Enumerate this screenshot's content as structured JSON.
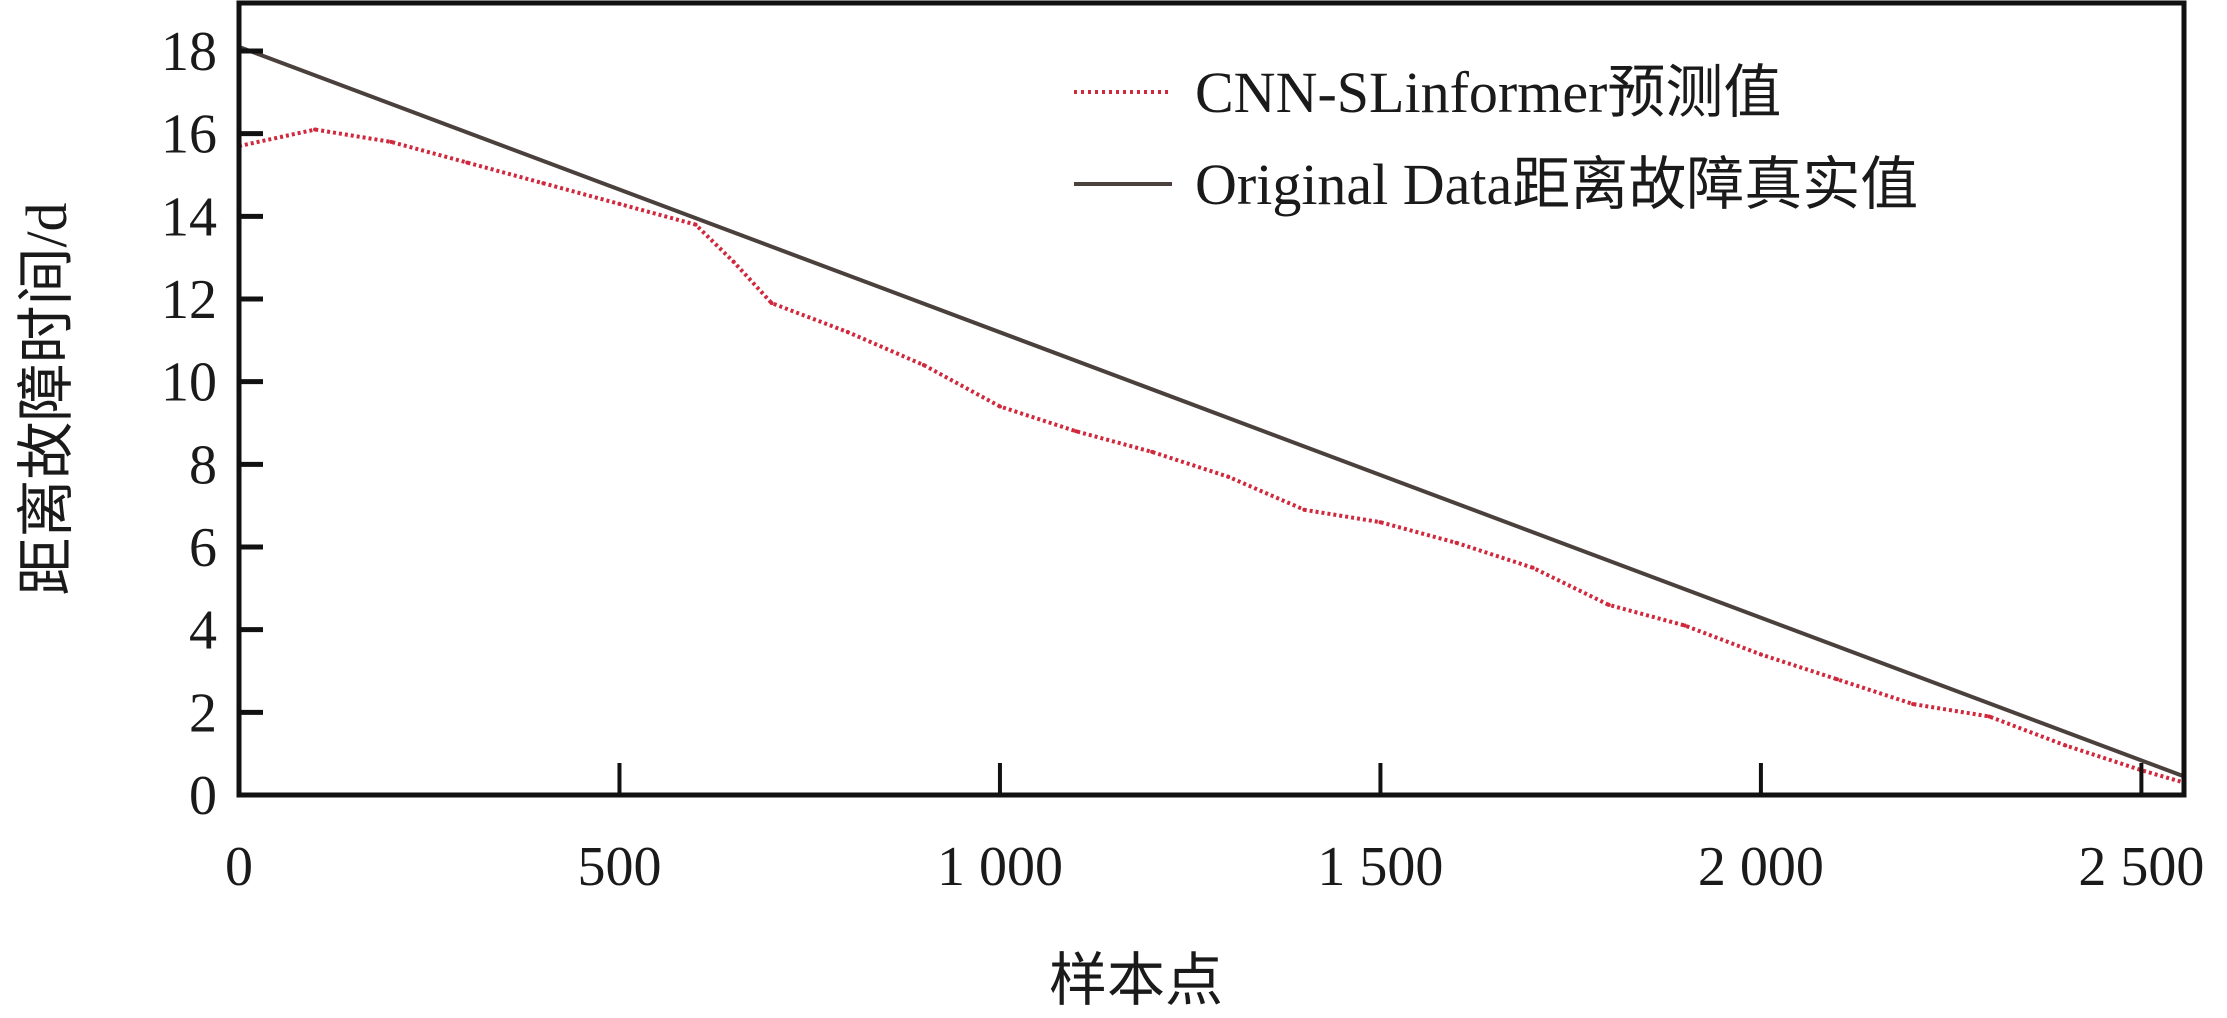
{
  "chart_data": {
    "type": "line",
    "title": "",
    "xlabel": "样本点",
    "ylabel": "距离故障时间/d",
    "xlim": [
      0,
      2556
    ],
    "ylim": [
      0,
      19
    ],
    "x_ticks": [
      0,
      500,
      1000,
      1500,
      2000,
      2500
    ],
    "x_tick_labels": [
      "0",
      "500",
      "1 000",
      "1 500",
      "2 000",
      "2 500"
    ],
    "y_ticks": [
      0,
      2,
      4,
      6,
      8,
      10,
      12,
      14,
      16,
      18
    ],
    "y_tick_labels": [
      "0",
      "2",
      "4",
      "6",
      "8",
      "10",
      "12",
      "14",
      "16",
      "18"
    ],
    "grid": false,
    "legend_position": "top-right",
    "series": [
      {
        "name": "CNN-SLinformer预测值",
        "style": "dotted",
        "color": "#d0283c",
        "x": [
          0,
          100,
          200,
          300,
          400,
          500,
          600,
          650,
          700,
          800,
          900,
          1000,
          1100,
          1200,
          1300,
          1400,
          1500,
          1600,
          1700,
          1800,
          1900,
          2000,
          2100,
          2200,
          2300,
          2400,
          2500,
          2556
        ],
        "y": [
          15.7,
          16.1,
          15.8,
          15.3,
          14.8,
          14.3,
          13.8,
          12.9,
          11.9,
          11.2,
          10.4,
          9.4,
          8.8,
          8.3,
          7.7,
          6.9,
          6.6,
          6.1,
          5.5,
          4.6,
          4.1,
          3.4,
          2.8,
          2.2,
          1.9,
          1.2,
          0.6,
          0.3
        ]
      },
      {
        "name": "Original Data距离故障真实值",
        "style": "solid",
        "color": "#4a403c",
        "x": [
          0,
          2556
        ],
        "y": [
          18.1,
          0.45
        ]
      }
    ]
  }
}
